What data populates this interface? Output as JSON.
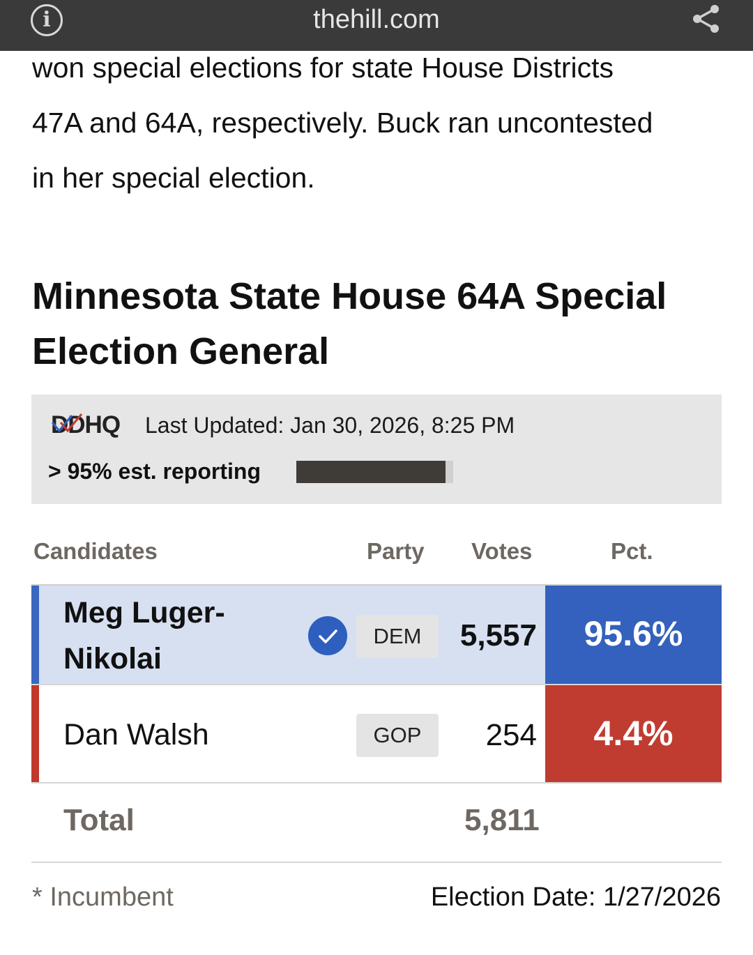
{
  "browser": {
    "domain": "thehill.com",
    "info_icon": "info-icon",
    "share_icon": "share-icon"
  },
  "article": {
    "lines": [
      "won special elections for state House Districts",
      "47A and 64A, respectively. Buck ran uncontested",
      "in her special election."
    ]
  },
  "widget": {
    "title": "Minnesota State House 64A Special Election General",
    "logo_text": "DDHQ",
    "last_updated": "Last Updated: Jan 30, 2026, 8:25 PM",
    "reporting_label": "> 95% est. reporting",
    "reporting_fraction": 0.95,
    "headers": {
      "candidates": "Candidates",
      "party": "Party",
      "votes": "Votes",
      "pct": "Pct."
    },
    "candidates": [
      {
        "name": "Meg Luger-Nikolai",
        "winner": true,
        "party": "DEM",
        "votes": "5,557",
        "pct": "95.6%",
        "color": "#3461bd"
      },
      {
        "name": "Dan Walsh",
        "winner": false,
        "party": "GOP",
        "votes": "254",
        "pct": "4.4%",
        "color": "#c03c31"
      }
    ],
    "total_label": "Total",
    "total_votes": "5,811",
    "incumbent_note": "* Incumbent",
    "election_date": "Election Date: 1/27/2026"
  }
}
